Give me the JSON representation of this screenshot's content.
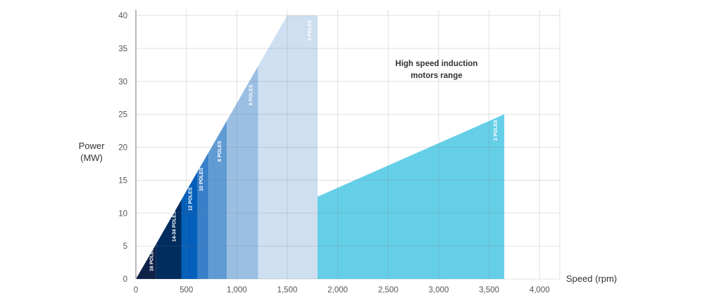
{
  "chart_data": {
    "type": "area",
    "title": "",
    "xlabel": "Speed (rpm)",
    "ylabel": [
      "Power",
      "(MW)"
    ],
    "xlim": [
      0,
      4200
    ],
    "ylim": [
      0,
      40
    ],
    "xticks": [
      0,
      500,
      1000,
      1500,
      2000,
      2500,
      3000,
      3500,
      4000
    ],
    "xtick_labels": [
      "0",
      "500",
      "1,000",
      "1,500",
      "2,000",
      "2,500",
      "3,000",
      "3,500",
      "4,000"
    ],
    "yticks": [
      0,
      5,
      10,
      15,
      20,
      25,
      30,
      35,
      40
    ],
    "yticks_labels": [
      "0",
      "5",
      "10",
      "15",
      "20",
      "25",
      "30",
      "35",
      "40"
    ],
    "grid": true,
    "annotation": [
      "High speed induction",
      "motors range"
    ],
    "series": [
      {
        "name": "16 POLES",
        "color": "#0f2147",
        "points": [
          [
            0,
            0
          ],
          [
            200,
            5.3
          ],
          [
            200,
            0
          ]
        ]
      },
      {
        "name": "14-34 POLES",
        "color": "#012c5e",
        "points": [
          [
            200,
            0
          ],
          [
            200,
            5.3
          ],
          [
            450,
            12
          ],
          [
            450,
            0
          ]
        ]
      },
      {
        "name": "12 POLES",
        "color": "#045fba",
        "points": [
          [
            450,
            0
          ],
          [
            450,
            12
          ],
          [
            610,
            16.3
          ],
          [
            610,
            0
          ]
        ]
      },
      {
        "name": "10 POLES",
        "color": "#3a80c9",
        "points": [
          [
            610,
            0
          ],
          [
            610,
            16.3
          ],
          [
            720,
            19.2
          ],
          [
            720,
            0
          ]
        ]
      },
      {
        "name": "8 POLES",
        "color": "#619bd4",
        "points": [
          [
            720,
            0
          ],
          [
            720,
            19.2
          ],
          [
            900,
            24
          ],
          [
            900,
            0
          ]
        ]
      },
      {
        "name": "6 POLES",
        "color": "#9bbfe3",
        "points": [
          [
            900,
            0
          ],
          [
            900,
            24
          ],
          [
            1210,
            32.3
          ],
          [
            1210,
            0
          ]
        ]
      },
      {
        "name": "4 POLES",
        "color": "#cddff0",
        "points": [
          [
            1210,
            0
          ],
          [
            1210,
            32.3
          ],
          [
            1500,
            40
          ],
          [
            1800,
            40
          ],
          [
            1800,
            0
          ]
        ]
      },
      {
        "name": "2 POLES",
        "color": "#66cfe8",
        "points": [
          [
            1800,
            0
          ],
          [
            1800,
            12.5
          ],
          [
            3650,
            25
          ],
          [
            3650,
            0
          ]
        ]
      }
    ]
  }
}
